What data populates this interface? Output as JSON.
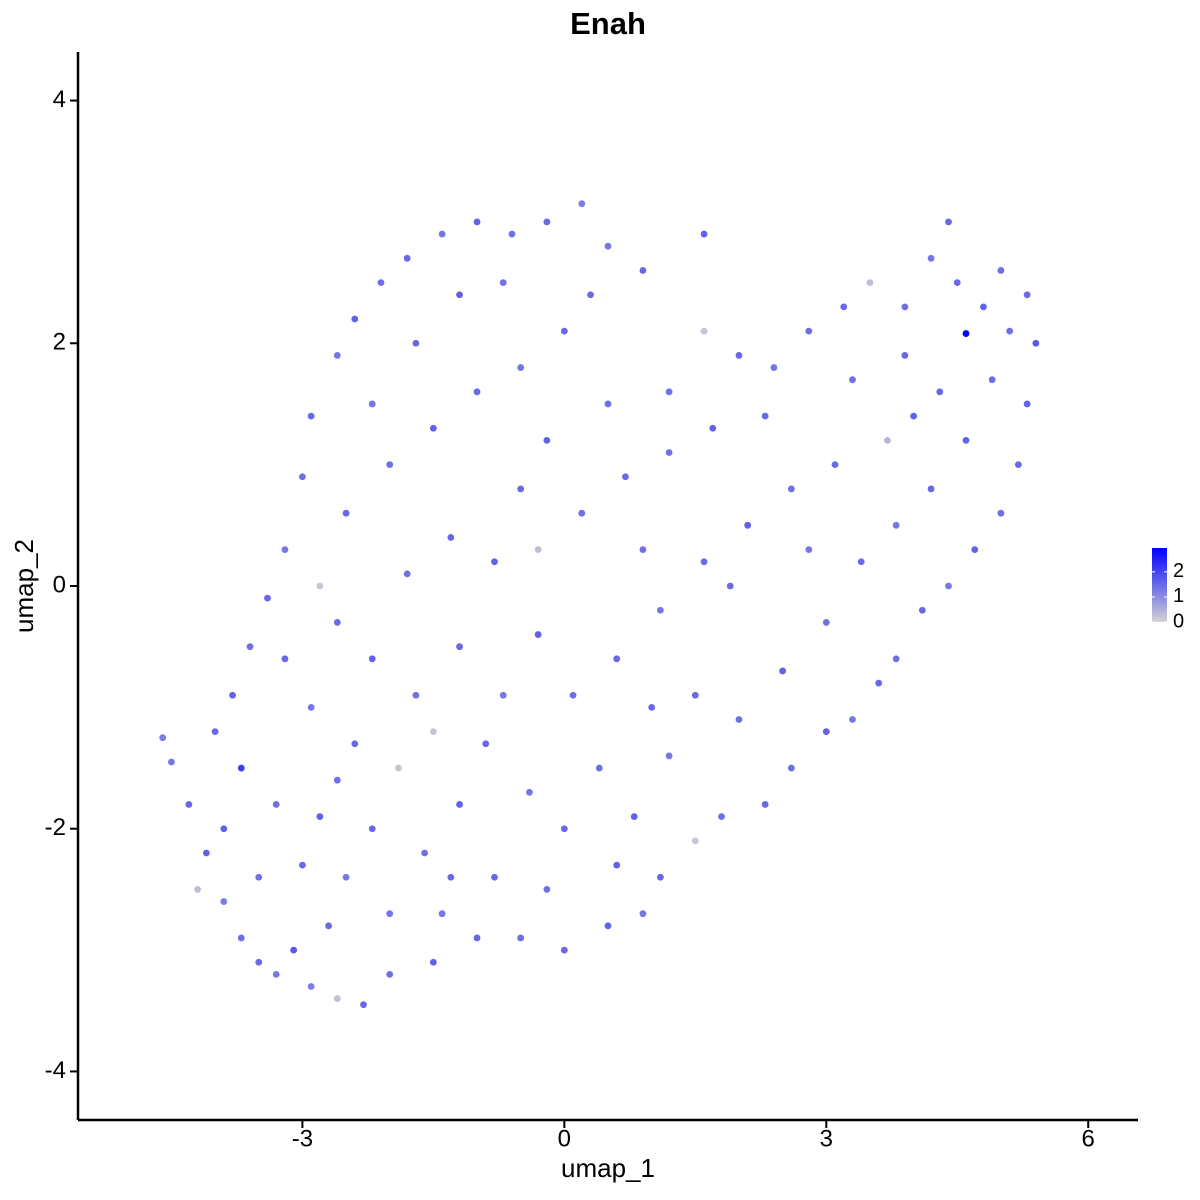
{
  "chart_data": {
    "type": "scatter",
    "title": "Enah",
    "x_label": "umap_1",
    "y_label": "umap_2",
    "xlim": [
      -5.57,
      6.57
    ],
    "xticks": [
      -3,
      0,
      3,
      6
    ],
    "ylim": [
      -4.4,
      4.4
    ],
    "yticks": [
      -4,
      -2,
      0,
      2,
      4
    ],
    "color_low": "#d3d3d3",
    "color_high": "#0000ff",
    "colorbar_lim": [
      0,
      2.95
    ],
    "colorbar_ticks": [
      0,
      1,
      2
    ],
    "x": [
      -4.6,
      -4.5,
      -4.3,
      -4.1,
      -3.9,
      -3.7,
      -3.5,
      -3.3,
      -3.1,
      -2.9,
      -2.6,
      -2.3,
      -2.0,
      -1.5,
      -1.4,
      -1.0,
      -0.5,
      0,
      0.5,
      0.9,
      1.1,
      1.5,
      1.8,
      2.3,
      2.6,
      3.0,
      3.3,
      3.6,
      3.8,
      4.1,
      4.4,
      4.7,
      5.0,
      5.2,
      5.3,
      5.4,
      5.3,
      5.0,
      4.6,
      4.4,
      4.2,
      3.9,
      3.5,
      3.2,
      2.8,
      2.4,
      2.0,
      1.6,
      1.6,
      1.2,
      0.9,
      0.5,
      0.2,
      -0.2,
      -0.6,
      -1.0,
      -1.4,
      -1.8,
      -2.1,
      -2.4,
      -2.6,
      -2.9,
      -3.0,
      -3.2,
      -3.4,
      -3.6,
      -3.8,
      -4.0,
      -3.7,
      -3.3,
      -3.0,
      -2.8,
      -2.5,
      -2.2,
      -1.9,
      -1.6,
      -1.2,
      -0.8,
      -0.4,
      0.0,
      0.4,
      0.8,
      1.2,
      1.5,
      2.0,
      2.5,
      3.0,
      3.4,
      3.8,
      4.2,
      4.6,
      4.9,
      4.3,
      3.7,
      3.1,
      2.6,
      2.1,
      1.6,
      1.1,
      0.6,
      0.1,
      -0.3,
      -0.7,
      -1.2,
      -1.7,
      -2.2,
      -2.6,
      -2.9,
      -2.4,
      -1.8,
      -1.3,
      -0.8,
      -0.3,
      0.2,
      0.7,
      1.2,
      1.7,
      2.3,
      -2.5,
      -2.0,
      -1.5,
      -1.0,
      -0.5,
      0.0,
      0.5,
      -0.2,
      -1.7,
      -2.2,
      -1.2,
      -0.7,
      0.3,
      -2.7,
      -3.5,
      -4.2,
      -3.9,
      -2.0,
      -1.3,
      -0.2,
      0.6,
      1.0,
      2.8,
      3.9,
      4.8,
      5.1,
      4.5,
      3.3,
      4.0,
      -0.9,
      -1.5,
      -2.6,
      -3.2,
      -2.8,
      -0.5,
      0.9,
      1.9
    ],
    "y": [
      -1.25,
      -1.45,
      -1.8,
      -2.2,
      -2.6,
      -2.9,
      -3.1,
      -3.2,
      -3.0,
      -3.3,
      -3.4,
      -3.45,
      -3.2,
      -3.1,
      -2.7,
      -2.9,
      -2.9,
      -3.0,
      -2.8,
      -2.7,
      -2.4,
      -2.1,
      -1.9,
      -1.8,
      -1.5,
      -1.2,
      -1.1,
      -0.8,
      -0.6,
      -0.2,
      0.0,
      0.3,
      0.6,
      1.0,
      1.5,
      2.0,
      2.4,
      2.6,
      2.08,
      3.0,
      2.7,
      2.3,
      2.5,
      2.3,
      2.1,
      1.8,
      1.9,
      2.9,
      2.1,
      1.6,
      2.6,
      2.8,
      3.15,
      3.0,
      2.9,
      3.0,
      2.9,
      2.7,
      2.5,
      2.2,
      1.9,
      1.4,
      0.9,
      0.3,
      -0.1,
      -0.5,
      -0.9,
      -1.2,
      -1.5,
      -1.8,
      -2.3,
      -1.9,
      -2.4,
      -2.0,
      -1.5,
      -2.2,
      -1.8,
      -2.4,
      -1.7,
      -2.0,
      -1.5,
      -1.9,
      -1.4,
      -0.9,
      -1.1,
      -0.7,
      -0.3,
      0.2,
      0.5,
      0.8,
      1.2,
      1.7,
      1.6,
      1.2,
      1.0,
      0.8,
      0.5,
      0.2,
      -0.2,
      -0.6,
      -0.9,
      -0.4,
      -0.9,
      -0.5,
      -0.9,
      -0.6,
      -0.3,
      -1.0,
      -1.3,
      0.1,
      0.4,
      0.2,
      0.3,
      0.6,
      0.9,
      1.1,
      1.3,
      1.4,
      0.6,
      1.0,
      1.3,
      1.6,
      1.8,
      2.1,
      1.5,
      1.2,
      2.0,
      1.5,
      2.4,
      2.5,
      2.4,
      -2.8,
      -2.4,
      -2.5,
      -2.0,
      -2.7,
      -2.4,
      -2.5,
      -2.3,
      -1.0,
      0.3,
      1.9,
      2.3,
      2.1,
      2.5,
      1.7,
      1.4,
      -1.3,
      -1.2,
      -1.6,
      -0.6,
      0.0,
      0.8,
      0.3,
      0.0
    ],
    "values": [
      1.2,
      1.3,
      1.5,
      1.6,
      1.2,
      1.4,
      1.5,
      1.3,
      1.7,
      1.2,
      0.3,
      1.5,
      1.4,
      1.6,
      1.3,
      1.5,
      1.4,
      1.5,
      1.6,
      1.3,
      1.5,
      0.2,
      1.4,
      1.5,
      1.4,
      1.6,
      1.3,
      1.5,
      1.4,
      1.5,
      1.3,
      1.6,
      1.4,
      1.5,
      1.6,
      1.7,
      1.5,
      1.4,
      2.9,
      1.5,
      1.3,
      1.4,
      0.3,
      1.5,
      1.4,
      1.3,
      1.5,
      1.6,
      0.2,
      1.4,
      1.5,
      1.3,
      1.2,
      1.5,
      1.4,
      1.6,
      1.3,
      1.5,
      1.4,
      1.6,
      1.3,
      1.5,
      1.4,
      1.3,
      1.5,
      1.4,
      1.6,
      1.5,
      2.1,
      1.4,
      1.5,
      1.6,
      1.3,
      1.5,
      0.2,
      1.4,
      1.6,
      1.5,
      1.3,
      1.5,
      1.4,
      1.6,
      1.3,
      1.5,
      1.4,
      1.6,
      1.4,
      1.5,
      1.3,
      1.5,
      1.6,
      1.4,
      1.5,
      0.4,
      1.5,
      1.4,
      1.6,
      1.5,
      1.3,
      1.5,
      1.4,
      1.6,
      1.3,
      1.5,
      1.4,
      1.6,
      1.5,
      1.3,
      1.5,
      1.4,
      1.5,
      1.6,
      0.3,
      1.4,
      1.5,
      1.4,
      1.6,
      1.5,
      1.5,
      1.4,
      1.6,
      1.5,
      1.3,
      1.5,
      1.4,
      1.6,
      1.5,
      1.3,
      1.6,
      1.4,
      1.5,
      1.5,
      1.4,
      0.3,
      1.6,
      1.3,
      1.5,
      1.4,
      1.6,
      1.5,
      1.3,
      1.5,
      1.6,
      1.4,
      1.5,
      1.4,
      1.6,
      1.5,
      0.2,
      1.4,
      1.5,
      0.2,
      1.5,
      1.4,
      1.5
    ]
  }
}
